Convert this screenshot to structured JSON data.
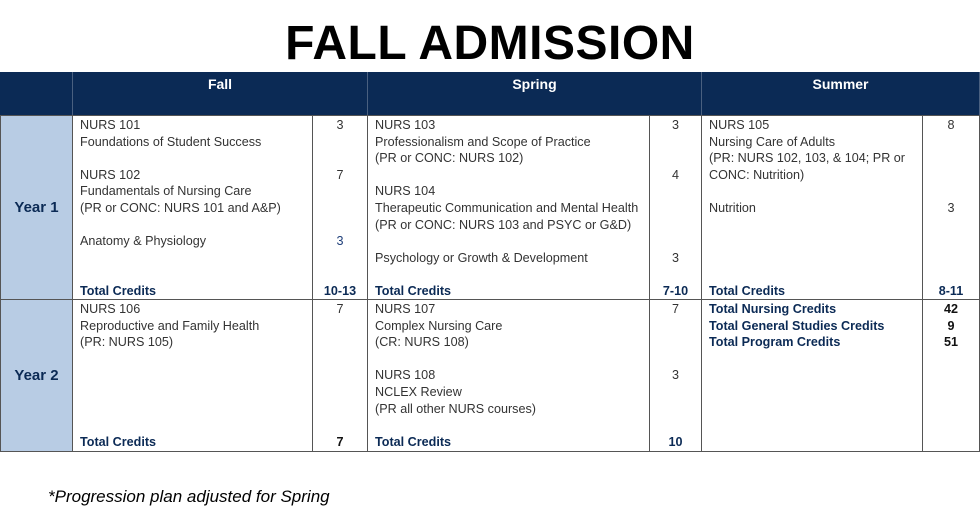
{
  "title": "FALL ADMISSION",
  "headers": [
    "Fall",
    "Spring",
    "Summer"
  ],
  "rows": [
    {
      "label": "Year 1",
      "cells": [
        {
          "lines": [
            "NURS 101",
            "Foundations of Student Success",
            "",
            "NURS 102",
            "Fundamentals of Nursing Care",
            "(PR or CONC: NURS 101 and A&P)",
            "",
            "Anatomy & Physiology"
          ],
          "credits": [
            "3",
            "",
            "",
            "7",
            "",
            "",
            "",
            "3"
          ],
          "total_label": "Total Credits",
          "total": "10-13"
        },
        {
          "lines": [
            "NURS 103",
            "Professionalism and Scope of Practice",
            "(PR or CONC: NURS 102)",
            "",
            "NURS 104",
            "Therapeutic Communication and Mental Health",
            "(PR or CONC: NURS 103 and PSYC or G&D)",
            "",
            "Psychology or Growth & Development"
          ],
          "credits": [
            "3",
            "",
            "",
            "4",
            "",
            "",
            "",
            "",
            "3"
          ],
          "total_label": "Total Credits",
          "total": "7-10"
        },
        {
          "lines": [
            "NURS 105",
            "Nursing Care of Adults",
            "(PR: NURS 102, 103, & 104; PR or",
            "CONC: Nutrition)",
            "",
            "Nutrition"
          ],
          "credits": [
            "8",
            "",
            "",
            "",
            "",
            "3"
          ],
          "total_label": "Total Credits",
          "total": "8-11"
        }
      ]
    },
    {
      "label": "Year 2",
      "cells": [
        {
          "lines": [
            "NURS 106",
            "Reproductive and Family Health",
            "(PR: NURS 105)"
          ],
          "credits": [
            "7"
          ],
          "total_label": "Total Credits",
          "total": "7"
        },
        {
          "lines": [
            "NURS 107",
            "Complex Nursing Care",
            "(CR: NURS 108)",
            "",
            "NURS 108",
            "NCLEX Review",
            "(PR all other NURS courses)"
          ],
          "credits": [
            "7",
            "",
            "",
            "",
            "3"
          ],
          "total_label": "Total Credits",
          "total": "10"
        },
        {
          "summary": [
            {
              "label": "Total Nursing Credits",
              "value": "42"
            },
            {
              "label": "Total General Studies Credits",
              "value": "9"
            },
            {
              "label": "Total Program Credits",
              "value": "51"
            }
          ]
        }
      ]
    }
  ],
  "footnote": "*Progression plan adjusted for Spring",
  "colors": {
    "header_bg": "#0b2a55",
    "year_bg": "#b8cce4",
    "total_text": "#0b2a55"
  }
}
